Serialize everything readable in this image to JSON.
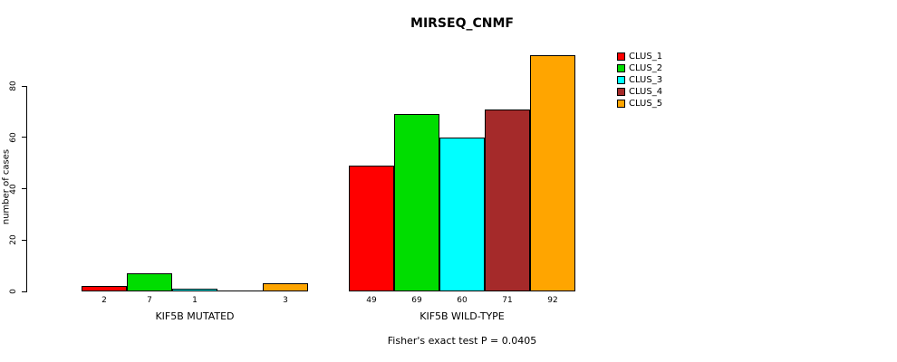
{
  "chart_data": {
    "type": "bar",
    "title": "MIRSEQ_CNMF",
    "ylabel": "number of cases",
    "ylim": [
      0,
      92
    ],
    "yticks": [
      0,
      20,
      40,
      60,
      80
    ],
    "grid": false,
    "legend_position": "right",
    "categories": [
      "KIF5B MUTATED",
      "KIF5B WILD-TYPE"
    ],
    "series": [
      {
        "name": "CLUS_1",
        "color": "#ff0000",
        "values": [
          2,
          49
        ]
      },
      {
        "name": "CLUS_2",
        "color": "#00dd00",
        "values": [
          7,
          69
        ]
      },
      {
        "name": "CLUS_3",
        "color": "#00ffff",
        "values": [
          1,
          60
        ]
      },
      {
        "name": "CLUS_4",
        "color": "#a52a2a",
        "values": [
          0,
          71
        ]
      },
      {
        "name": "CLUS_5",
        "color": "#ffa500",
        "values": [
          3,
          92
        ]
      }
    ],
    "bar_value_labels_shown": true,
    "annotation": "Fisher's exact test P = 0.0405"
  }
}
